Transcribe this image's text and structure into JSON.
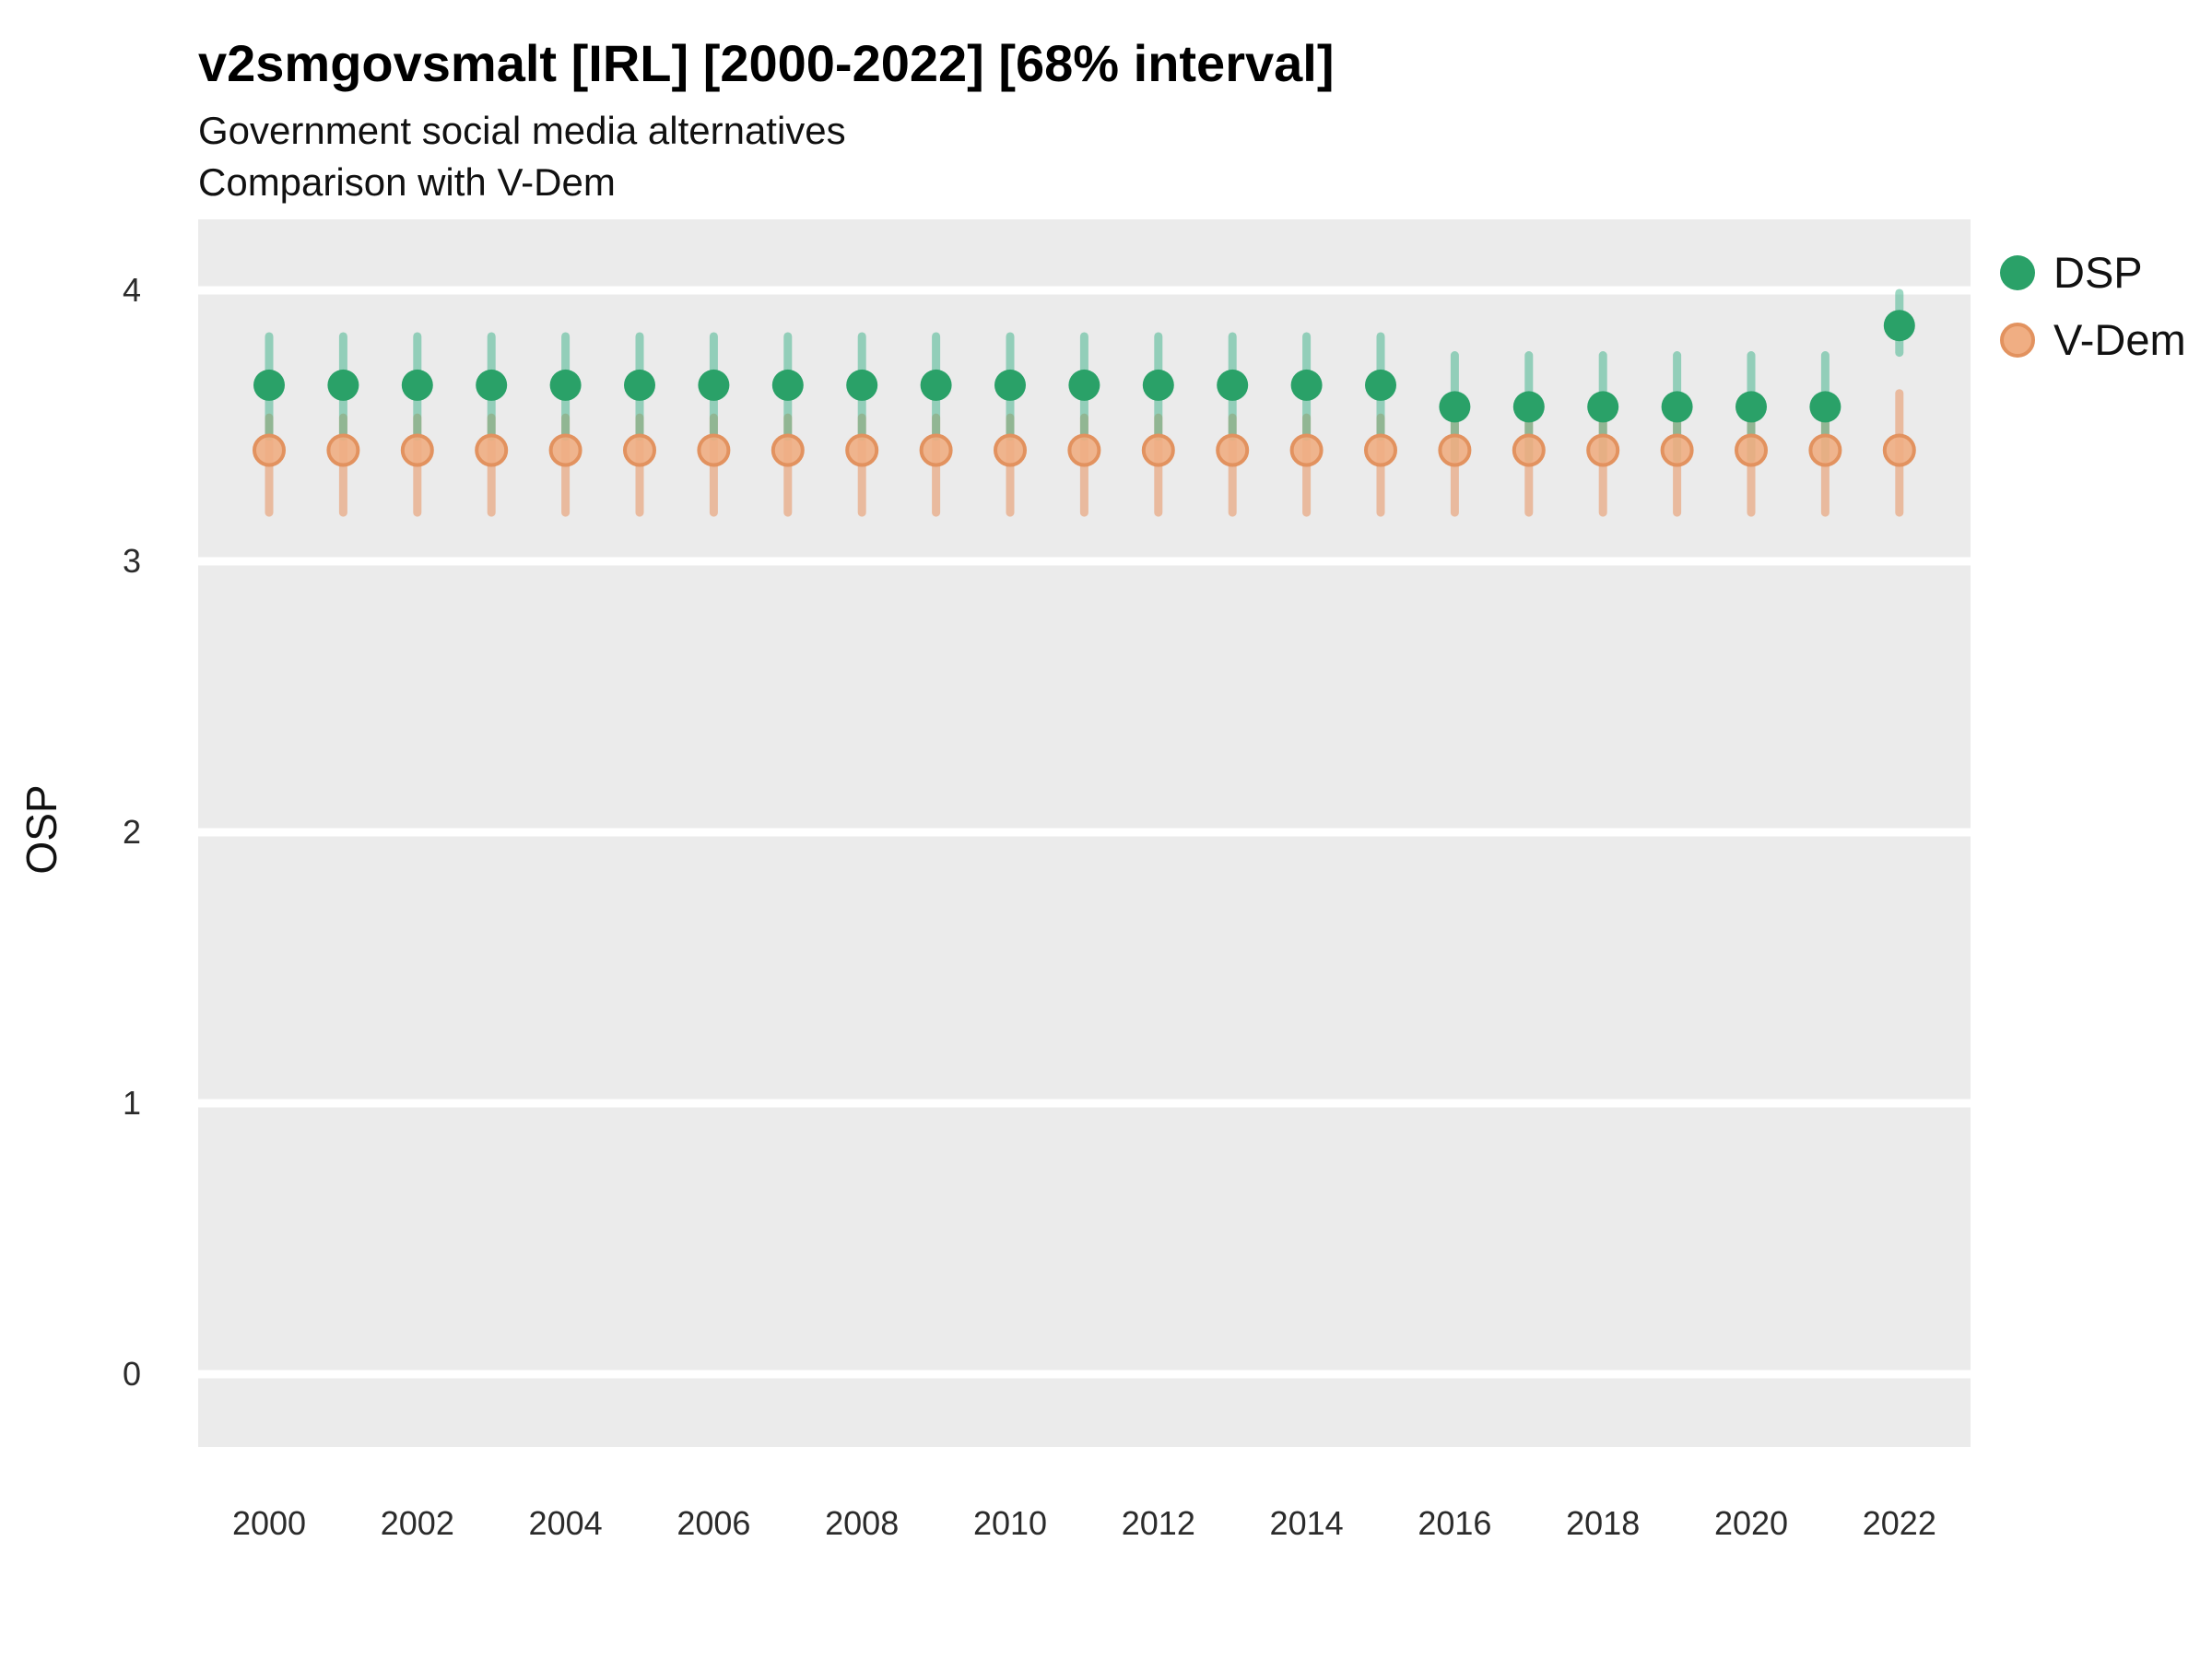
{
  "header": {
    "title": "v2smgovsmalt [IRL] [2000-2022] [68% interval]",
    "subtitle_line1": "Government social media alternatives",
    "subtitle_line2": "Comparison with V-Dem"
  },
  "chart_data": {
    "type": "scatter",
    "title": "v2smgovsmalt [IRL] [2000-2022] [68% interval]",
    "subtitle": "Government social media alternatives — Comparison with V-Dem",
    "xlabel": "",
    "ylabel": "OSP",
    "x": [
      2000,
      2001,
      2002,
      2003,
      2004,
      2005,
      2006,
      2007,
      2008,
      2009,
      2010,
      2011,
      2012,
      2013,
      2014,
      2015,
      2016,
      2017,
      2018,
      2019,
      2020,
      2021,
      2022
    ],
    "x_ticks": [
      2000,
      2002,
      2004,
      2006,
      2008,
      2010,
      2012,
      2014,
      2016,
      2018,
      2020,
      2022
    ],
    "y_ticks": [
      0,
      1,
      2,
      3,
      4
    ],
    "ylim": [
      -0.27,
      4.27
    ],
    "grid": "major-white-on-gray",
    "panel_color": "#EBEBEB",
    "gridline_color": "#FFFFFF",
    "legend_position": "right",
    "interval_label": "68% interval",
    "series": [
      {
        "name": "DSP",
        "point_color": "#2AA168",
        "interval_color": "rgba(58,178,136,0.50)",
        "values": [
          3.65,
          3.65,
          3.65,
          3.65,
          3.65,
          3.65,
          3.65,
          3.65,
          3.65,
          3.65,
          3.65,
          3.65,
          3.65,
          3.65,
          3.65,
          3.65,
          3.57,
          3.57,
          3.57,
          3.57,
          3.57,
          3.57,
          3.87
        ],
        "lo": [
          3.46,
          3.46,
          3.46,
          3.46,
          3.46,
          3.46,
          3.46,
          3.46,
          3.46,
          3.46,
          3.46,
          3.46,
          3.46,
          3.46,
          3.46,
          3.46,
          3.38,
          3.38,
          3.38,
          3.38,
          3.38,
          3.38,
          3.77
        ],
        "hi": [
          3.83,
          3.83,
          3.83,
          3.83,
          3.83,
          3.83,
          3.83,
          3.83,
          3.83,
          3.83,
          3.83,
          3.83,
          3.83,
          3.83,
          3.83,
          3.83,
          3.76,
          3.76,
          3.76,
          3.76,
          3.76,
          3.76,
          3.99
        ]
      },
      {
        "name": "V-Dem",
        "point_color": "#F0AE83",
        "point_stroke": "#E2925F",
        "interval_color": "rgba(231,154,106,0.60)",
        "values": [
          3.41,
          3.41,
          3.41,
          3.41,
          3.41,
          3.41,
          3.41,
          3.41,
          3.41,
          3.41,
          3.41,
          3.41,
          3.41,
          3.41,
          3.41,
          3.41,
          3.41,
          3.41,
          3.41,
          3.41,
          3.41,
          3.41,
          3.41
        ],
        "lo": [
          3.18,
          3.18,
          3.18,
          3.18,
          3.18,
          3.18,
          3.18,
          3.18,
          3.18,
          3.18,
          3.18,
          3.18,
          3.18,
          3.18,
          3.18,
          3.18,
          3.18,
          3.18,
          3.18,
          3.18,
          3.18,
          3.18,
          3.18
        ],
        "hi": [
          3.53,
          3.53,
          3.53,
          3.53,
          3.53,
          3.53,
          3.53,
          3.53,
          3.53,
          3.53,
          3.53,
          3.53,
          3.53,
          3.53,
          3.53,
          3.53,
          3.53,
          3.53,
          3.53,
          3.53,
          3.53,
          3.53,
          3.62
        ]
      }
    ]
  }
}
